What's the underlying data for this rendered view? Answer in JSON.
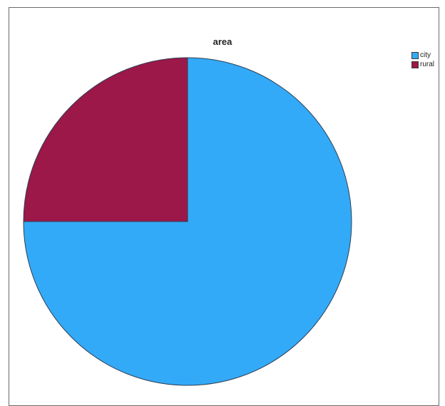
{
  "chart_data": {
    "type": "pie",
    "title": "area",
    "legend_position": "top-right",
    "slices": [
      {
        "label": "city",
        "value": 75,
        "color": "#33aaf7"
      },
      {
        "label": "rural",
        "value": 25,
        "color": "#9b1848"
      }
    ],
    "start_angle_deg": 0,
    "direction": "clockwise",
    "edge_color": "#2f3f55"
  }
}
